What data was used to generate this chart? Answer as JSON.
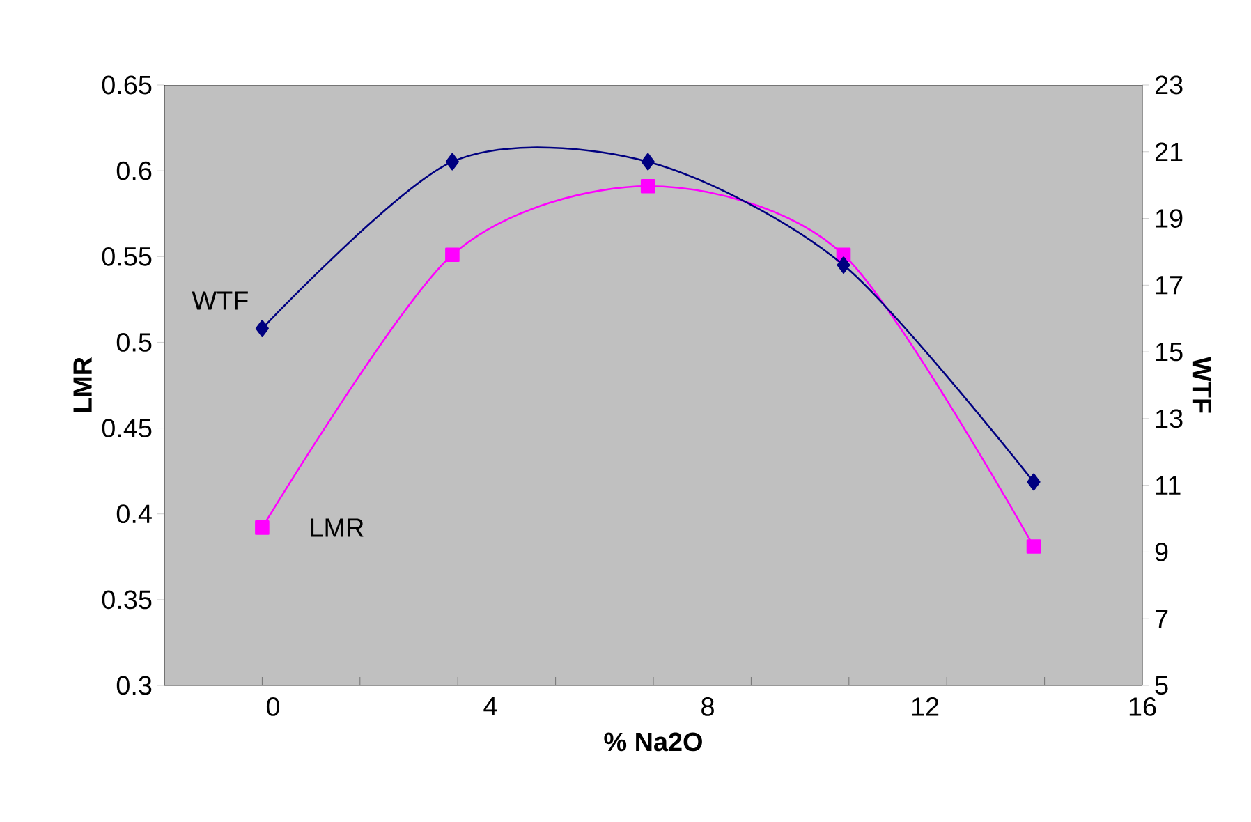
{
  "chart_data": {
    "type": "line",
    "xlabel": "% Na2O",
    "ylabel": "LMR",
    "y2label": "WTF",
    "x": [
      -0.2,
      3.3,
      6.9,
      10.5,
      14.0
    ],
    "xlim": [
      -2,
      16
    ],
    "xticks": [
      0,
      4,
      8,
      12,
      16,
      {
        "value": -0.2,
        "label": null
      },
      {
        "value": 1.6,
        "label": null
      },
      {
        "value": 3.4,
        "label": null
      },
      {
        "value": 5.2,
        "label": null
      },
      {
        "value": 7.0,
        "label": null
      },
      {
        "value": 8.8,
        "label": null
      },
      {
        "value": 10.6,
        "label": null
      },
      {
        "value": 12.4,
        "label": null
      },
      {
        "value": 14.2,
        "label": null
      }
    ],
    "ylim": [
      0.3,
      0.65
    ],
    "yticks": [
      0.3,
      0.35,
      0.4,
      0.45,
      0.5,
      0.55,
      0.6,
      0.65
    ],
    "y2lim": [
      5,
      23
    ],
    "y2ticks": [
      5,
      7,
      9,
      11,
      13,
      15,
      17,
      19,
      21,
      23
    ],
    "series": [
      {
        "name": "LMR",
        "color": "#ff00ff",
        "marker": "square",
        "values": [
          0.392,
          0.551,
          0.591,
          0.551,
          0.381
        ]
      },
      {
        "name": "WTF",
        "color": "#000080",
        "marker": "diamond",
        "axis": "y2",
        "values": [
          15.7,
          20.7,
          20.7,
          17.6,
          11.1
        ]
      }
    ]
  }
}
